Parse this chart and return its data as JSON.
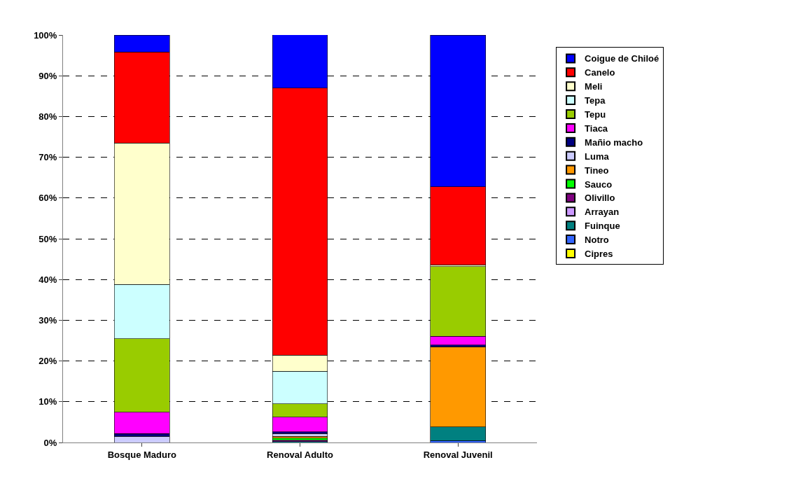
{
  "chart_data": {
    "type": "bar",
    "stacked": true,
    "categories": [
      "Bosque Maduro",
      "Renoval Adulto",
      "Renoval Juvenil"
    ],
    "ylim": [
      0,
      100
    ],
    "yticks": [
      {
        "value": 0,
        "label": "0%"
      },
      {
        "value": 10,
        "label": "10%"
      },
      {
        "value": 20,
        "label": "20%"
      },
      {
        "value": 30,
        "label": "30%"
      },
      {
        "value": 40,
        "label": "40%"
      },
      {
        "value": 50,
        "label": "50%"
      },
      {
        "value": 60,
        "label": "60%"
      },
      {
        "value": 70,
        "label": "70%"
      },
      {
        "value": 80,
        "label": "80%"
      },
      {
        "value": 90,
        "label": "90%"
      },
      {
        "value": 100,
        "label": "100%"
      }
    ],
    "grid": "y",
    "legend": "right",
    "series": [
      {
        "name": "Cipres",
        "color": "#ffff00",
        "values": [
          0,
          0,
          0
        ]
      },
      {
        "name": "Notro",
        "color": "#3366ff",
        "values": [
          0,
          0,
          0.5
        ]
      },
      {
        "name": "Fuinque",
        "color": "#008080",
        "values": [
          0,
          0.2,
          3.3
        ]
      },
      {
        "name": "Arrayan",
        "color": "#cc99ff",
        "values": [
          0,
          0,
          0
        ]
      },
      {
        "name": "Olivillo",
        "color": "#800080",
        "values": [
          0,
          0.4,
          0
        ]
      },
      {
        "name": "Sauco",
        "color": "#00ff00",
        "values": [
          0,
          0.5,
          0
        ]
      },
      {
        "name": "Tineo",
        "color": "#ff9900",
        "values": [
          0,
          0.4,
          19.7
        ]
      },
      {
        "name": "Luma",
        "color": "#ccccff",
        "values": [
          1.5,
          0.7,
          0
        ]
      },
      {
        "name": "Mañio macho",
        "color": "#000080",
        "values": [
          0.7,
          0.4,
          0.4
        ]
      },
      {
        "name": "Tiaca",
        "color": "#ff00ff",
        "values": [
          5.2,
          3.6,
          2.2
        ]
      },
      {
        "name": "Tepu",
        "color": "#99cc00",
        "values": [
          18.1,
          3.3,
          17.1
        ]
      },
      {
        "name": "Tepa",
        "color": "#ccffff",
        "values": [
          13.3,
          8.0,
          0
        ]
      },
      {
        "name": "Meli",
        "color": "#ffffcc",
        "values": [
          34.7,
          3.9,
          0.4
        ]
      },
      {
        "name": "Canelo",
        "color": "#ff0000",
        "values": [
          22.3,
          65.6,
          19.2
        ]
      },
      {
        "name": "Coigue de Chiloé",
        "color": "#0000ff",
        "values": [
          4.2,
          13.2,
          37.2
        ]
      }
    ]
  }
}
